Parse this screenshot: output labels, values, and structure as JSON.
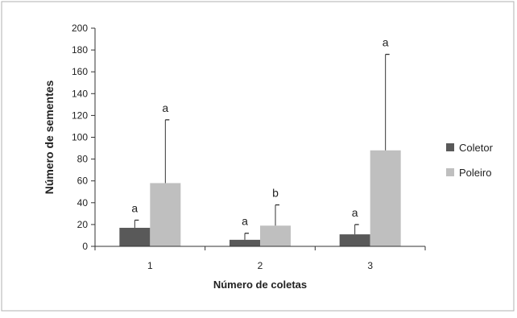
{
  "chart_data": {
    "type": "bar",
    "title": "",
    "xlabel": "Número de coletas",
    "ylabel": "Número de sementes",
    "categories": [
      "1",
      "2",
      "3"
    ],
    "ylim": [
      0,
      200
    ],
    "yticks": [
      0,
      20,
      40,
      60,
      80,
      100,
      120,
      140,
      160,
      180,
      200
    ],
    "grid": false,
    "legend_position": "right",
    "series": [
      {
        "name": "Coletor",
        "color": "#595959",
        "values": [
          17,
          6,
          11
        ],
        "errors": [
          7,
          6,
          9
        ],
        "letters": [
          "a",
          "a",
          "a"
        ]
      },
      {
        "name": "Poleiro",
        "color": "#bfbfbf",
        "values": [
          58,
          19,
          88
        ],
        "errors": [
          58,
          19,
          88
        ],
        "letters": [
          "a",
          "b",
          "a"
        ]
      }
    ]
  }
}
